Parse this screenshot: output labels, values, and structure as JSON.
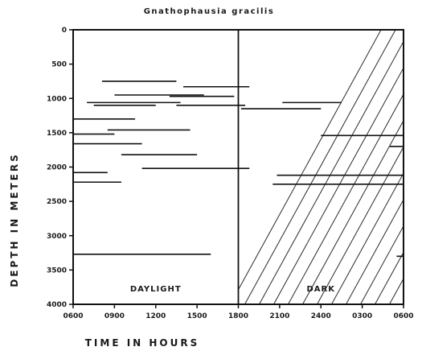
{
  "chart_data": {
    "type": "timeline",
    "title": "Gnathophausia gracilis",
    "xlabel": "TIME IN HOURS",
    "ylabel": "DEPTH IN METERS",
    "x_unit": "hours elapsed since 0600",
    "x_ticks": [
      {
        "value": 0,
        "label": "0600"
      },
      {
        "value": 3,
        "label": "0900"
      },
      {
        "value": 6,
        "label": "1200"
      },
      {
        "value": 9,
        "label": "1500"
      },
      {
        "value": 12,
        "label": "1800"
      },
      {
        "value": 15,
        "label": "2100"
      },
      {
        "value": 18,
        "label": "2400"
      },
      {
        "value": 21,
        "label": "0300"
      },
      {
        "value": 24,
        "label": "0600"
      }
    ],
    "xlim": [
      0,
      24
    ],
    "ylim": [
      0,
      4000
    ],
    "y_inverted": true,
    "y_ticks": [
      0,
      500,
      1000,
      1500,
      2000,
      2500,
      3000,
      3500,
      4000
    ],
    "regions": [
      {
        "label": "DAYLIGHT",
        "from": 0,
        "to": 12,
        "hatched": false
      },
      {
        "label": "DARK",
        "from": 12,
        "to": 24,
        "hatched": true
      }
    ],
    "tows": [
      {
        "start": 2.1,
        "end": 7.5,
        "depth": 750
      },
      {
        "start": 8.0,
        "end": 12.8,
        "depth": 830
      },
      {
        "start": 3.0,
        "end": 9.5,
        "depth": 950
      },
      {
        "start": 7.0,
        "end": 11.7,
        "depth": 970
      },
      {
        "start": 1.0,
        "end": 7.8,
        "depth": 1060
      },
      {
        "start": 15.2,
        "end": 19.5,
        "depth": 1060
      },
      {
        "start": 1.5,
        "end": 6.0,
        "depth": 1100
      },
      {
        "start": 7.5,
        "end": 12.5,
        "depth": 1100
      },
      {
        "start": 12.2,
        "end": 18.0,
        "depth": 1150
      },
      {
        "start": 0.0,
        "end": 4.5,
        "depth": 1300
      },
      {
        "start": 2.5,
        "end": 8.5,
        "depth": 1460
      },
      {
        "start": 0.0,
        "end": 3.0,
        "depth": 1520
      },
      {
        "start": 18.0,
        "end": 24.0,
        "depth": 1540
      },
      {
        "start": 0.0,
        "end": 5.0,
        "depth": 1660
      },
      {
        "start": 23.0,
        "end": 24.0,
        "depth": 1700
      },
      {
        "start": 3.5,
        "end": 9.0,
        "depth": 1820
      },
      {
        "start": 5.0,
        "end": 12.8,
        "depth": 2020
      },
      {
        "start": 0.0,
        "end": 2.5,
        "depth": 2080
      },
      {
        "start": 14.8,
        "end": 24.0,
        "depth": 2120
      },
      {
        "start": 0.0,
        "end": 3.5,
        "depth": 2220
      },
      {
        "start": 14.5,
        "end": 24.0,
        "depth": 2250
      },
      {
        "start": 23.5,
        "end": 24.0,
        "depth": 3300
      },
      {
        "start": 0.0,
        "end": 10.0,
        "depth": 3270
      }
    ]
  }
}
